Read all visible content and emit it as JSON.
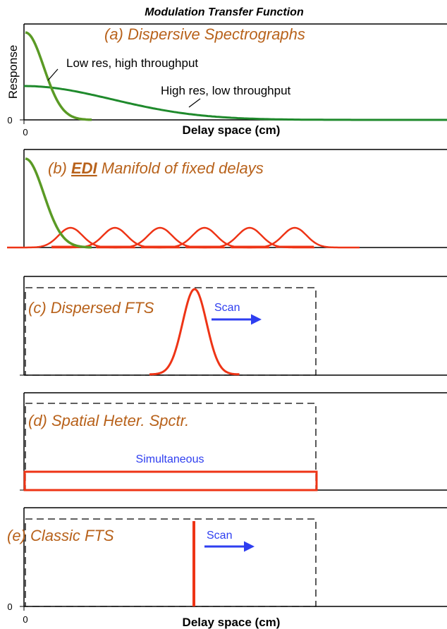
{
  "figure": {
    "title": "Modulation Transfer Function",
    "ylabel": "Response",
    "xlabel_top": "Delay space (cm)",
    "xlabel_bottom": "Delay space (cm)",
    "x_zero_top": "0",
    "y_zero_top": "0",
    "x_zero_bottom": "0",
    "y_zero_bottom": "0"
  },
  "colors": {
    "label": "#b8621b",
    "green": "#1f8a2c",
    "light_green": "#5a9a25",
    "red": "#ee3416",
    "blue": "#2e3ef0"
  },
  "panels": [
    {
      "label": "(a) Dispersive Spectrographs",
      "annotation_low": "Low res, high throughput",
      "annotation_high": "High res, low throughput"
    },
    {
      "label_prefix": "(b) ",
      "label_edi": "EDI",
      "label_suffix": " Manifold of fixed delays"
    },
    {
      "label": "(c) Dispersed FTS",
      "scan": "Scan"
    },
    {
      "label": "(d) Spatial Heter. Spctr.",
      "simultaneous": "Simultaneous"
    },
    {
      "label": "(e) Classic FTS",
      "scan": "Scan"
    }
  ]
}
